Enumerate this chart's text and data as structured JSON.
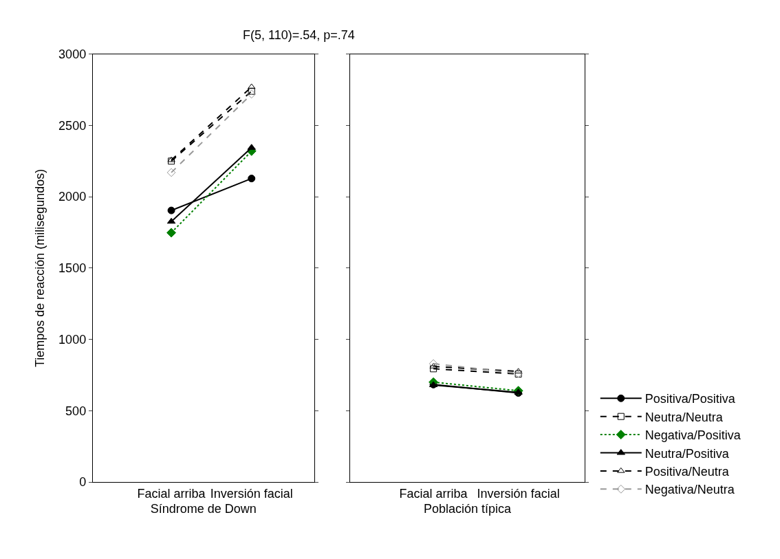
{
  "chart_data": [
    {
      "type": "line",
      "title": "F(5, 110)=.54, p=.74",
      "ylabel": "Tiempos de reacción (milisegundos)",
      "xlabel": "Síndrome de Down",
      "categories": [
        "Facial arriba",
        "Inversión facial"
      ],
      "ylim": [
        0,
        3000
      ],
      "yticks": [
        0,
        500,
        1000,
        1500,
        2000,
        2500,
        3000
      ],
      "series": [
        {
          "color": "#000000",
          "values": [
            1904,
            2128
          ],
          "marker": "circle",
          "line_style": "solid"
        },
        {
          "color": "#000000",
          "values": [
            2250,
            2740
          ],
          "marker": "square",
          "line_style": "dashed"
        },
        {
          "color": "#008000",
          "values": [
            1748,
            2320
          ],
          "marker": "diamond",
          "line_style": "dotted"
        },
        {
          "color": "#000000",
          "values": [
            1826,
            2344
          ],
          "marker": "triangle",
          "line_style": "solid"
        },
        {
          "color": "#000000",
          "values": [
            2257,
            2770
          ],
          "marker": "triangle",
          "line_style": "dashed"
        },
        {
          "color": "#999999",
          "values": [
            2170,
            2720
          ],
          "marker": "diamond",
          "line_style": "dashed"
        }
      ]
    },
    {
      "type": "line",
      "xlabel": "Población típica",
      "categories": [
        "Facial arriba",
        "Inversión facial"
      ],
      "ylim": [
        0,
        3000
      ],
      "yticks": [
        0,
        500,
        1000,
        1500,
        2000,
        2500,
        3000
      ],
      "tick_labels": "x",
      "legend": "bottom right",
      "series": [
        {
          "name": "Positiva/Positiva",
          "color": "#000000",
          "values": [
            683,
            624
          ],
          "marker": "circle",
          "line_style": "solid"
        },
        {
          "name": "Neutra/Neutra",
          "color": "#000000",
          "values": [
            794,
            757
          ],
          "marker": "square",
          "line_style": "dashed"
        },
        {
          "name": "Negativa/Positiva",
          "color": "#008000",
          "values": [
            700,
            640
          ],
          "marker": "diamond",
          "line_style": "dotted"
        },
        {
          "name": "Neutra/Positiva",
          "color": "#000000",
          "values": [
            680,
            628
          ],
          "marker": "triangle",
          "line_style": "solid"
        },
        {
          "name": "Positiva/Neutra",
          "color": "#000000",
          "values": [
            810,
            775
          ],
          "marker": "triangle",
          "line_style": "dashed"
        },
        {
          "name": "Negativa/Neutra",
          "color": "#999999",
          "values": [
            830,
            761
          ],
          "marker": "diamond",
          "line_style": "dashed"
        }
      ]
    }
  ]
}
